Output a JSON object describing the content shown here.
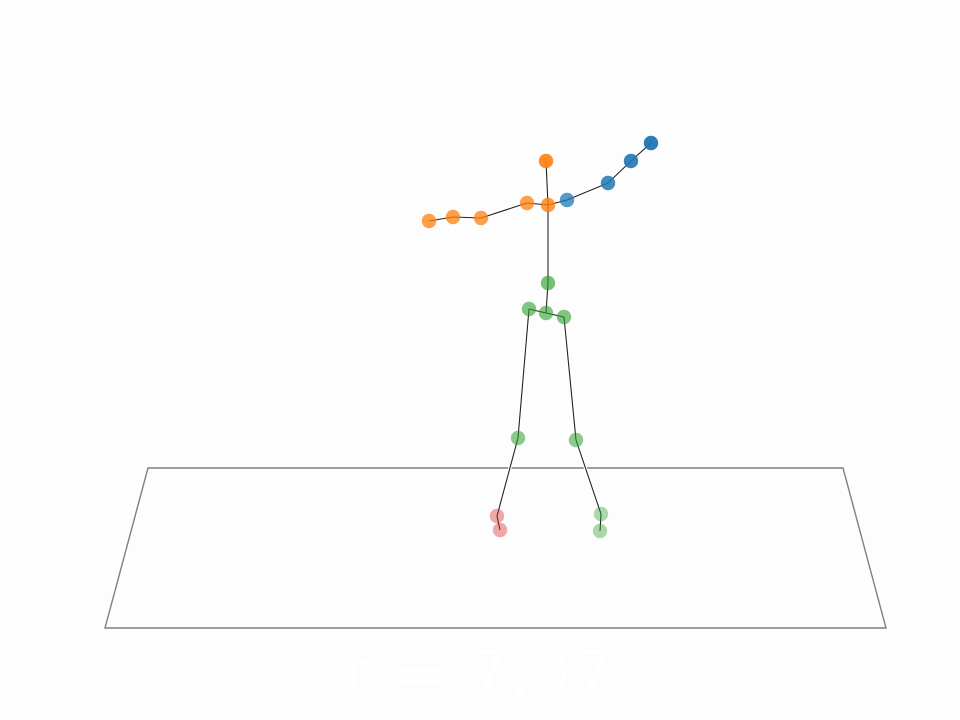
{
  "time_label": "t = 7.07",
  "colors": {
    "floor_outline": "#7f7f7f",
    "bone": "#222222",
    "bone_outline": "#ffffff",
    "background": "#fdfdfd",
    "blue_group": "#1f77b4",
    "orange_group": "#ff7f0e",
    "green_group": "#2ca02c",
    "red_group": "#d62728"
  }
}
